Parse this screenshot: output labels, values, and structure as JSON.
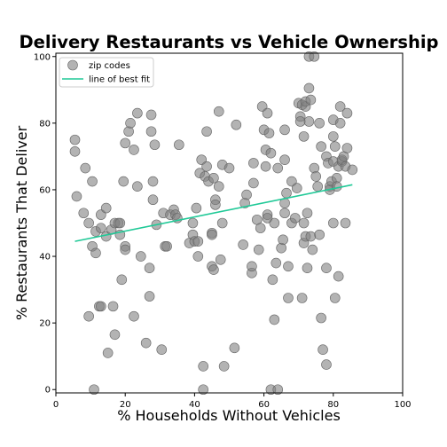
{
  "chart_data": {
    "type": "scatter",
    "title": "Delivery Restaurants vs Vehicle Ownership",
    "xlabel": "% Households Without Vehicles",
    "ylabel": "% Restaurants That Deliver",
    "xlim": [
      0,
      100
    ],
    "ylim": [
      -1,
      101
    ],
    "x_ticks": [
      "0",
      "20",
      "40",
      "60",
      "80",
      "100"
    ],
    "y_ticks": [
      "0",
      "20",
      "40",
      "60",
      "80",
      "100"
    ],
    "grid": false,
    "legend": {
      "placement": "top-left",
      "entries": [
        "zip codes",
        "line of best fit"
      ]
    },
    "colors": {
      "points": "#808080",
      "fit_line": "#20c997"
    },
    "series": [
      {
        "name": "zip codes",
        "points": [
          [
            5.5,
            75
          ],
          [
            5.5,
            71.5
          ],
          [
            6,
            58
          ],
          [
            8,
            53
          ],
          [
            8.5,
            66.5
          ],
          [
            9.5,
            50
          ],
          [
            9.5,
            22
          ],
          [
            10.5,
            62.5
          ],
          [
            10.5,
            43
          ],
          [
            11,
            0
          ],
          [
            11.5,
            41
          ],
          [
            11.5,
            47.5
          ],
          [
            12.5,
            25
          ],
          [
            13,
            25
          ],
          [
            13,
            48.5
          ],
          [
            13,
            52.5
          ],
          [
            14.5,
            46
          ],
          [
            14.5,
            54.5
          ],
          [
            15,
            11
          ],
          [
            16,
            48
          ],
          [
            16.5,
            25
          ],
          [
            17,
            50
          ],
          [
            17,
            16.5
          ],
          [
            18,
            50
          ],
          [
            18.5,
            50
          ],
          [
            18.5,
            46.5
          ],
          [
            19,
            33
          ],
          [
            19.5,
            62.5
          ],
          [
            20,
            74
          ],
          [
            20,
            43
          ],
          [
            20,
            42
          ],
          [
            21,
            77.5
          ],
          [
            21.5,
            80
          ],
          [
            22.5,
            72
          ],
          [
            22.5,
            22
          ],
          [
            23.5,
            83
          ],
          [
            23.5,
            61
          ],
          [
            24.5,
            40
          ],
          [
            26,
            14
          ],
          [
            27,
            28
          ],
          [
            27,
            36.5
          ],
          [
            27.5,
            77.5
          ],
          [
            27.5,
            82.5
          ],
          [
            28,
            57
          ],
          [
            28,
            62.5
          ],
          [
            28.5,
            73.5
          ],
          [
            29,
            49.5
          ],
          [
            30.5,
            12
          ],
          [
            31,
            53
          ],
          [
            31.5,
            43
          ],
          [
            32,
            43
          ],
          [
            33,
            52.5
          ],
          [
            34,
            54
          ],
          [
            34.5,
            52.5
          ],
          [
            35,
            51.5
          ],
          [
            35.5,
            73.5
          ],
          [
            38.5,
            44
          ],
          [
            39.5,
            50
          ],
          [
            39.5,
            46.5
          ],
          [
            40,
            44.5
          ],
          [
            40.5,
            54.5
          ],
          [
            41,
            44.5
          ],
          [
            41,
            40
          ],
          [
            41.5,
            65
          ],
          [
            42,
            69
          ],
          [
            42.5,
            7
          ],
          [
            42.5,
            0
          ],
          [
            43,
            64
          ],
          [
            43.5,
            67
          ],
          [
            43.5,
            77.5
          ],
          [
            44,
            62.5
          ],
          [
            45,
            47
          ],
          [
            45,
            46.5
          ],
          [
            45,
            37
          ],
          [
            45.5,
            36
          ],
          [
            45.5,
            63.5
          ],
          [
            46,
            57
          ],
          [
            46,
            55.5
          ],
          [
            47,
            83.5
          ],
          [
            47,
            61
          ],
          [
            47.5,
            39
          ],
          [
            48,
            50
          ],
          [
            48,
            67.5
          ],
          [
            48.5,
            7
          ],
          [
            50,
            66.5
          ],
          [
            51.5,
            12.5
          ],
          [
            52,
            79.5
          ],
          [
            54,
            43.5
          ],
          [
            54.5,
            56
          ],
          [
            55,
            58.5
          ],
          [
            56.5,
            35
          ],
          [
            56.5,
            37
          ],
          [
            57,
            68
          ],
          [
            57,
            62
          ],
          [
            58,
            51
          ],
          [
            58.5,
            42
          ],
          [
            59,
            48.5
          ],
          [
            59.5,
            85
          ],
          [
            60,
            78
          ],
          [
            60.5,
            72
          ],
          [
            60.5,
            67
          ],
          [
            61,
            83
          ],
          [
            61,
            52.5
          ],
          [
            61,
            51.5
          ],
          [
            61.5,
            77
          ],
          [
            62,
            71
          ],
          [
            62,
            0
          ],
          [
            62.5,
            33
          ],
          [
            63,
            50
          ],
          [
            63,
            21
          ],
          [
            63.5,
            38
          ],
          [
            64,
            66.5
          ],
          [
            64,
            0
          ],
          [
            65,
            42.5
          ],
          [
            65.5,
            45
          ],
          [
            66,
            69
          ],
          [
            66,
            56
          ],
          [
            66,
            53
          ],
          [
            66,
            78
          ],
          [
            66.5,
            59
          ],
          [
            67,
            37
          ],
          [
            67,
            27.5
          ],
          [
            68,
            62.5
          ],
          [
            68,
            50
          ],
          [
            69,
            51.5
          ],
          [
            69.5,
            60.5
          ],
          [
            70,
            86
          ],
          [
            70.5,
            82
          ],
          [
            70.5,
            80.5
          ],
          [
            71,
            85.5
          ],
          [
            71,
            27.5
          ],
          [
            71.5,
            76
          ],
          [
            71.5,
            50
          ],
          [
            71.5,
            44
          ],
          [
            72,
            85
          ],
          [
            72,
            86.5
          ],
          [
            72,
            46
          ],
          [
            72.5,
            36.5
          ],
          [
            72.5,
            53
          ],
          [
            73,
            80.5
          ],
          [
            73,
            90.5
          ],
          [
            73,
            100
          ],
          [
            73.5,
            87
          ],
          [
            73.5,
            46
          ],
          [
            74,
            42
          ],
          [
            74.5,
            66.5
          ],
          [
            74.5,
            100
          ],
          [
            75,
            64
          ],
          [
            75.5,
            61
          ],
          [
            76,
            46.5
          ],
          [
            76,
            80
          ],
          [
            76.5,
            21.5
          ],
          [
            76.5,
            73
          ],
          [
            77,
            12
          ],
          [
            78,
            7.5
          ],
          [
            78,
            36.5
          ],
          [
            78,
            70
          ],
          [
            78.5,
            68
          ],
          [
            79,
            61
          ],
          [
            79,
            60
          ],
          [
            79.5,
            62.5
          ],
          [
            80,
            81
          ],
          [
            80,
            50
          ],
          [
            80,
            76
          ],
          [
            80,
            68.5
          ],
          [
            80.5,
            27.5
          ],
          [
            80.5,
            73
          ],
          [
            81,
            63.5
          ],
          [
            81,
            61
          ],
          [
            81.5,
            34
          ],
          [
            81.5,
            67
          ],
          [
            82,
            80
          ],
          [
            82,
            85
          ],
          [
            82.5,
            68.5
          ],
          [
            82.5,
            69
          ],
          [
            83,
            70
          ],
          [
            83.5,
            50
          ],
          [
            83.5,
            67
          ],
          [
            84,
            72.5
          ],
          [
            84,
            83
          ],
          [
            85.5,
            66
          ]
        ]
      },
      {
        "name": "line of best fit",
        "line": [
          [
            5.5,
            44.5
          ],
          [
            85.5,
            61.5
          ]
        ]
      }
    ]
  }
}
